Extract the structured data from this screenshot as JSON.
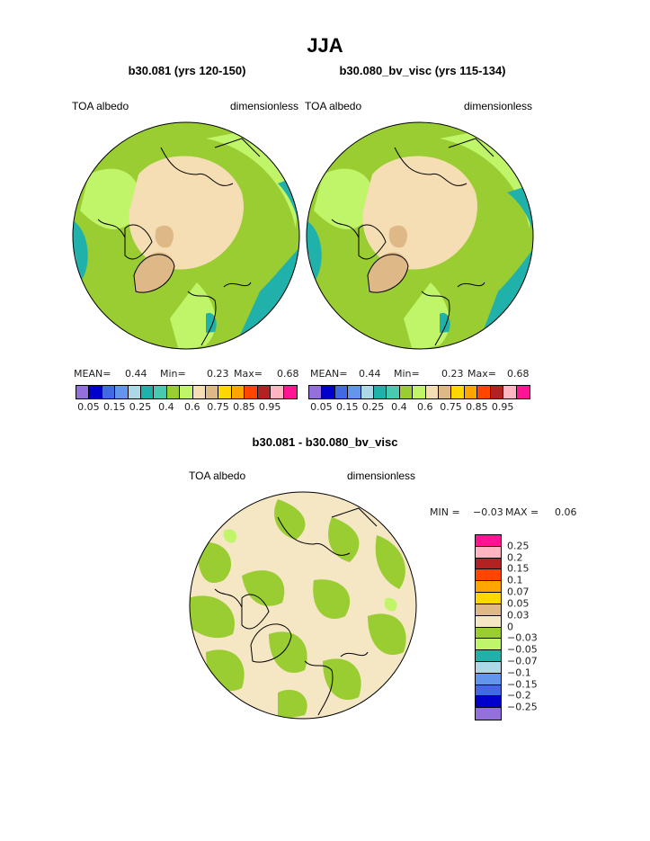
{
  "main_title": "JJA",
  "panels": [
    {
      "case": "b30.081 (yrs 120-150)",
      "variable": "TOA albedo",
      "units": "dimensionless",
      "mean_label": "MEAN=",
      "mean": "0.44",
      "min_label": "Min=",
      "min": "0.23",
      "max_label": "Max=",
      "max": "0.68"
    },
    {
      "case": "b30.080_bv_visc (yrs 115-134)",
      "variable": "TOA albedo",
      "units": "dimensionless",
      "mean_label": "MEAN=",
      "mean": "0.44",
      "min_label": "Min=",
      "min": "0.23",
      "max_label": "Max=",
      "max": "0.68"
    }
  ],
  "abs_colorbar": {
    "colors": [
      "#9370DB",
      "#0000CD",
      "#4169E1",
      "#6495ED",
      "#ADD8E6",
      "#20B2AA",
      "#48C9B0",
      "#9ACD32",
      "#C1F569",
      "#F5DEB3",
      "#DEB887",
      "#FFD700",
      "#FFA500",
      "#FF4500",
      "#B22222",
      "#FFB6C1",
      "#FF1493"
    ],
    "ticks": [
      "0.05",
      "0.15",
      "0.25",
      "0.4",
      "0.6",
      "0.75",
      "0.85",
      "0.95"
    ]
  },
  "diff": {
    "title": "b30.081 - b30.080_bv_visc",
    "variable": "TOA albedo",
    "units": "dimensionless",
    "min_label": "MIN =",
    "min": "−0.03",
    "max_label": "MAX =",
    "max": "0.06"
  },
  "diff_colorbar": {
    "colors": [
      "#FF1493",
      "#FFB6C1",
      "#B22222",
      "#FF4500",
      "#FFA500",
      "#FFD700",
      "#DEB887",
      "#F5E6C4",
      "#9ACD32",
      "#C1F569",
      "#20B2AA",
      "#ADD8E6",
      "#6495ED",
      "#4169E1",
      "#0000CD",
      "#9370DB"
    ],
    "ticks": [
      "0.25",
      "0.2",
      "0.15",
      "0.1",
      "0.07",
      "0.05",
      "0.03",
      "0",
      "−0.03",
      "−0.05",
      "−0.07",
      "−0.1",
      "−0.15",
      "−0.2",
      "−0.25"
    ]
  }
}
